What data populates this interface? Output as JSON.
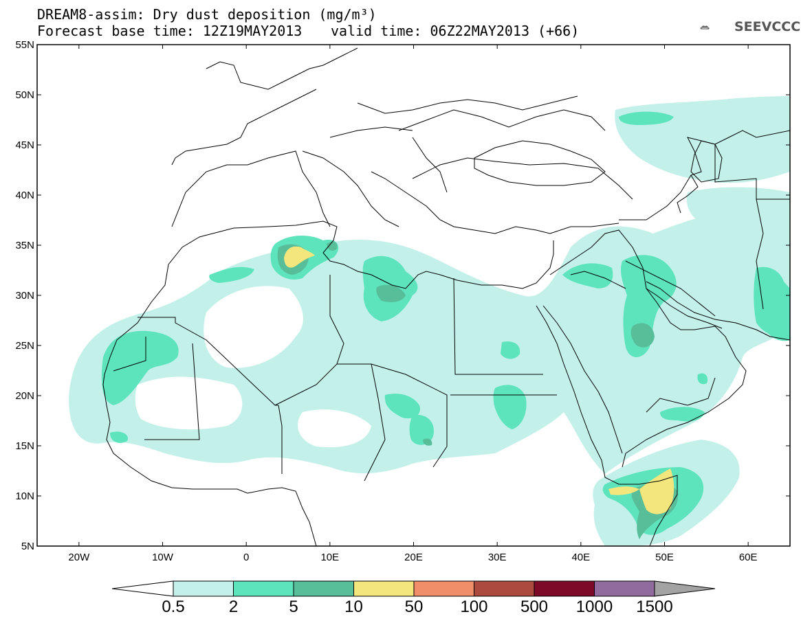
{
  "title": {
    "line1": "DREAM8-assim: Dry dust deposition (mg/m³)",
    "line2": "Forecast base time: 12Z19MAY2013",
    "line3": "valid time: 06Z22MAY2013 (+66)"
  },
  "logo_text": "SEEVCCC",
  "axes": {
    "lat_ticks": [
      "55N",
      "50N",
      "45N",
      "40N",
      "35N",
      "30N",
      "25N",
      "20N",
      "15N",
      "10N",
      "5N"
    ],
    "lon_ticks": [
      "20W",
      "10W",
      "0",
      "10E",
      "20E",
      "30E",
      "40E",
      "50E",
      "60E"
    ],
    "lat_range": [
      5,
      55
    ],
    "lon_range": [
      -25,
      65
    ]
  },
  "colorbar": {
    "labels": [
      "0.5",
      "2",
      "5",
      "10",
      "50",
      "100",
      "500",
      "1000",
      "1500"
    ],
    "colors": [
      "#c3f1ea",
      "#5ee4bd",
      "#58bd99",
      "#f2e67d",
      "#ef8e68",
      "#ac4a3e",
      "#7e0a2a",
      "#926b9e",
      "#a3a3a3"
    ],
    "under_color": "#ffffff"
  },
  "map_colors": {
    "ocean": "#ffffff",
    "border": "#000000"
  }
}
